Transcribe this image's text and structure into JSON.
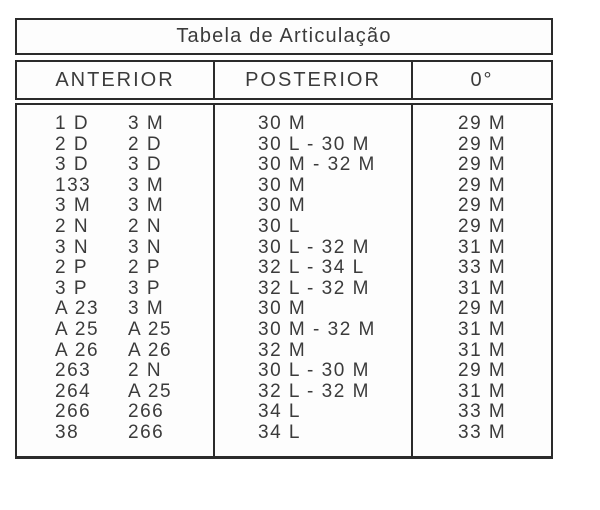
{
  "title": "Tabela de Articulação",
  "headers": {
    "anterior": "ANTERIOR",
    "posterior": "POSTERIOR",
    "zero_degrees": "0°"
  },
  "rows": [
    {
      "anterior_1": "1 D",
      "anterior_2": "3 M",
      "posterior": "30 M",
      "zero": "29 M"
    },
    {
      "anterior_1": "2 D",
      "anterior_2": "2 D",
      "posterior": "30 L - 30 M",
      "zero": "29 M"
    },
    {
      "anterior_1": "3 D",
      "anterior_2": "3 D",
      "posterior": "30 M - 32 M",
      "zero": "29 M"
    },
    {
      "anterior_1": "133",
      "anterior_2": "3 M",
      "posterior": "30 M",
      "zero": "29 M"
    },
    {
      "anterior_1": "3 M",
      "anterior_2": "3 M",
      "posterior": "30 M",
      "zero": "29 M"
    },
    {
      "anterior_1": "2 N",
      "anterior_2": "2 N",
      "posterior": "30 L",
      "zero": "29 M"
    },
    {
      "anterior_1": "3 N",
      "anterior_2": "3 N",
      "posterior": "30 L - 32 M",
      "zero": "31 M"
    },
    {
      "anterior_1": "2 P",
      "anterior_2": "2 P",
      "posterior": "32 L - 34 L",
      "zero": "33 M"
    },
    {
      "anterior_1": "3 P",
      "anterior_2": "3 P",
      "posterior": "32 L - 32 M",
      "zero": "31 M"
    },
    {
      "anterior_1": "A 23",
      "anterior_2": "3 M",
      "posterior": "30 M",
      "zero": "29 M"
    },
    {
      "anterior_1": "A 25",
      "anterior_2": "A 25",
      "posterior": "30 M - 32 M",
      "zero": "31 M"
    },
    {
      "anterior_1": "A 26",
      "anterior_2": "A 26",
      "posterior": "32 M",
      "zero": "31 M"
    },
    {
      "anterior_1": "263",
      "anterior_2": "2 N",
      "posterior": "30 L - 30 M",
      "zero": "29 M"
    },
    {
      "anterior_1": "264",
      "anterior_2": "A 25",
      "posterior": "32 L - 32 M",
      "zero": "31 M"
    },
    {
      "anterior_1": "266",
      "anterior_2": "266",
      "posterior": "34 L",
      "zero": "33 M"
    },
    {
      "anterior_1": "38",
      "anterior_2": "266",
      "posterior": "34 L",
      "zero": "33 M"
    }
  ],
  "colors": {
    "border": "#2b2b2b",
    "text": "#3b3b3b",
    "page_background": "#ffffff",
    "cell_background": "#fdfdfd"
  }
}
